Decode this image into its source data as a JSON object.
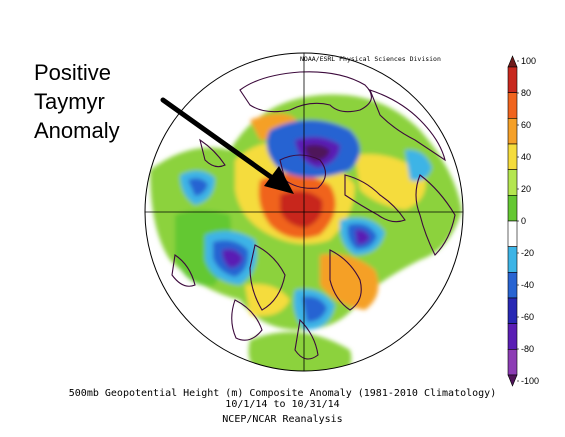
{
  "annotation": {
    "lines": [
      "Positive",
      "Taymyr",
      "Anomaly"
    ]
  },
  "credit": "NOAA/ESRL Physical Sciences Division",
  "caption": {
    "line1": "500mb Geopotential Height (m) Composite Anomaly (1981-2010 Climatology)",
    "line2": "10/1/14  to 10/31/14",
    "line3": "NCEP/NCAR Reanalysis"
  },
  "colorbar": {
    "labels": [
      "100",
      "80",
      "60",
      "40",
      "20",
      "0",
      "-20",
      "-40",
      "-60",
      "-80",
      "-100"
    ],
    "bands": [
      "#6e1a1a",
      "#c8281e",
      "#f0641e",
      "#f5a028",
      "#f5dc3c",
      "#b4e650",
      "#64c832",
      "#ffffff",
      "#3cb4e6",
      "#2864d2",
      "#2828b4",
      "#5a1eb4",
      "#8c3cb4",
      "#50145a"
    ]
  },
  "colors": {
    "ocean_background": "#ffffff",
    "coastline": "#3c0a3c",
    "grid": "#000000"
  }
}
